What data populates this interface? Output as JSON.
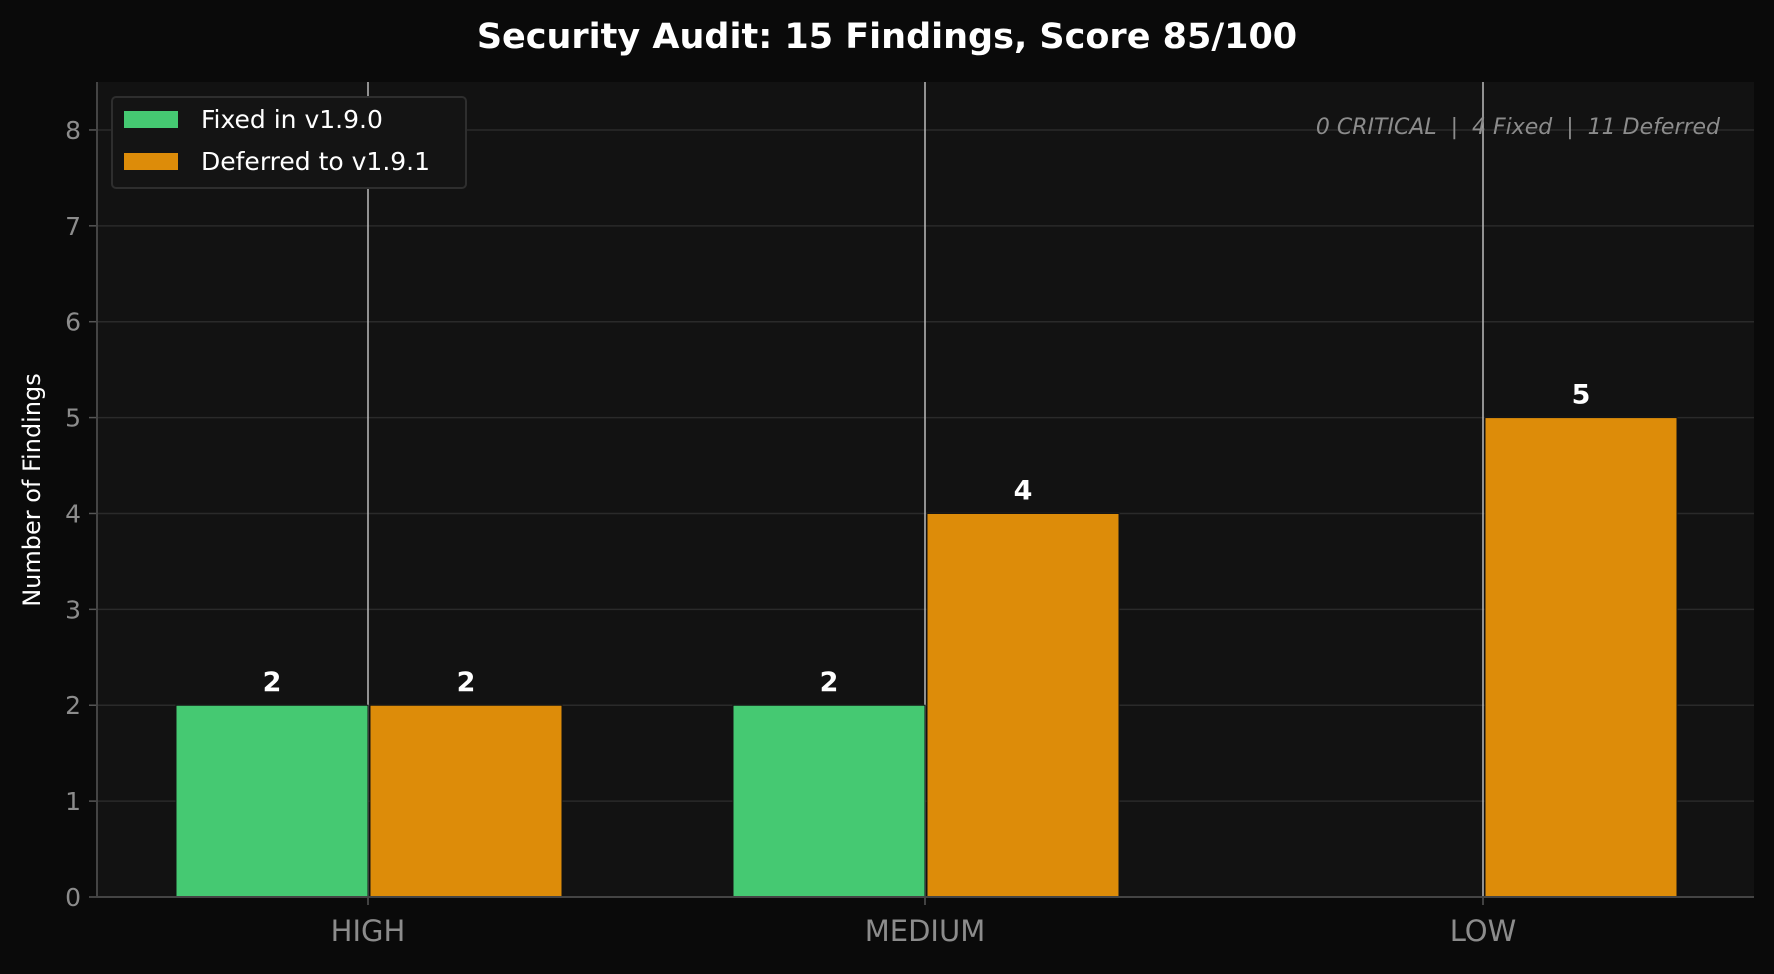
{
  "chart_data": {
    "type": "bar",
    "title": "Security Audit: 15 Findings, Score 85/100",
    "xlabel": "",
    "ylabel": "Number of Findings",
    "categories": [
      "HIGH",
      "MEDIUM",
      "LOW"
    ],
    "series": [
      {
        "name": "Fixed in v1.9.0",
        "values": [
          2,
          2,
          0
        ],
        "color": "#45c972"
      },
      {
        "name": "Deferred to v1.9.1",
        "values": [
          2,
          4,
          5
        ],
        "color": "#dd8c09"
      }
    ],
    "data_labels": [
      [
        "2",
        "2",
        ""
      ],
      [
        "2",
        "4",
        "5"
      ]
    ],
    "ylim": [
      0,
      8.5
    ],
    "yticks": [
      "0",
      "1",
      "2",
      "3",
      "4",
      "5",
      "6",
      "7",
      "8"
    ],
    "grid": true,
    "legend": "top-left",
    "annotation": "0 CRITICAL  |  4 Fixed  |  11 Deferred",
    "colors": {
      "background": "#0a0a0a",
      "plot_background": "#121212",
      "text": "#ffffff",
      "tick_text": "#8c8c8c"
    }
  }
}
